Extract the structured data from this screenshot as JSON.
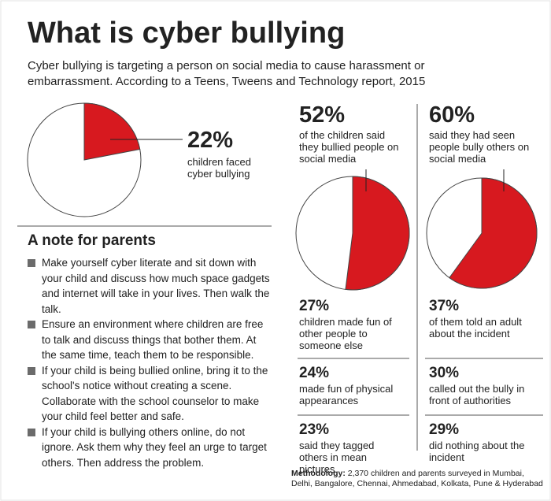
{
  "title": "What is cyber bullying",
  "subtitle": "Cyber bullying is targeting a person on social media to cause harassment or embarrassment. According to a Teens, Tweens and Technology report, 2015",
  "main_stat": {
    "value": 22,
    "label": "22%",
    "text": "children faced cyber bullying"
  },
  "parents": {
    "heading": "A note for parents",
    "items": [
      "Make yourself cyber literate and sit down with your child and discuss how much space gadgets and internet will take in your lives. Then walk the talk.",
      "Ensure an environment where children are free to talk and discuss things that bother them. At the same time, teach them to be responsible.",
      "If your child is being bullied online, bring it to the school's notice without creating a scene. Collaborate with the school counselor to make your child feel better and safe.",
      "If your child is bullying others online, do not ignore. Ask them why they feel an urge to target others. Then address the problem."
    ]
  },
  "columns": [
    {
      "value": 52,
      "label": "52%",
      "text": "of the children said they bullied people on social media",
      "details": [
        {
          "label": "27%",
          "text": "children made fun of other people to someone else"
        },
        {
          "label": "24%",
          "text": "made fun of physical appearances"
        },
        {
          "label": "23%",
          "text": "said they tagged others in mean pictures"
        }
      ]
    },
    {
      "value": 60,
      "label": "60%",
      "text": "said they had seen people bully others on social media",
      "details": [
        {
          "label": "37%",
          "text": "of them told an adult about the incident"
        },
        {
          "label": "30%",
          "text": "called out the bully in front of authorities"
        },
        {
          "label": "29%",
          "text": "did nothing about the incident"
        }
      ]
    }
  ],
  "methodology": {
    "label": "Methodology:",
    "text": "2,370 children and parents surveyed in Mumbai, Delhi, Bangalore, Chennai, Ahmedabad, Kolkata, Pune & Hyderabad"
  }
}
